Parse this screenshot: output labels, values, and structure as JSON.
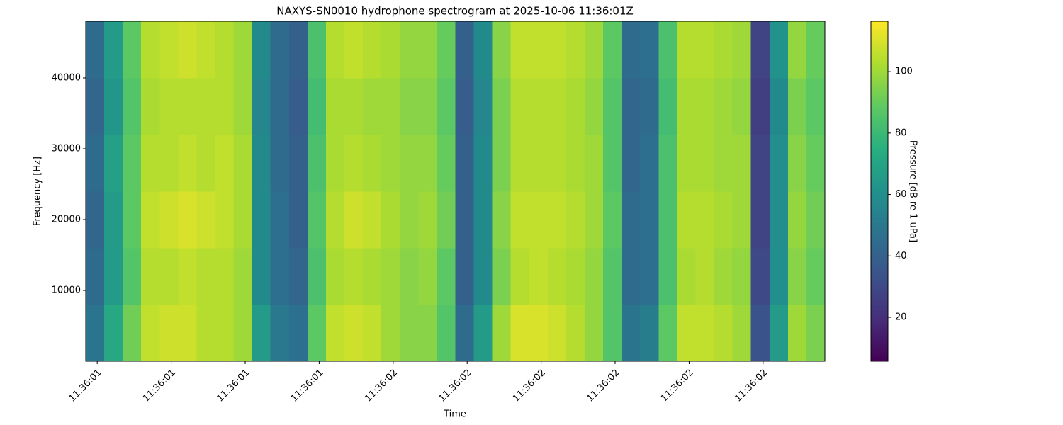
{
  "chart_data": {
    "type": "heatmap",
    "title": "NAXYS-SN0010 hydrophone spectrogram at 2025-10-06 11:36:01Z",
    "xlabel": "Time",
    "ylabel": "Frequency [Hz]",
    "colorbar_label": "Pressure [dB re 1 uPa]",
    "colormap": "viridis",
    "x": [
      -0.03,
      0.22,
      0.469,
      0.719,
      0.969,
      1.219,
      1.468,
      1.718,
      1.968,
      2.218,
      2.467,
      2.717,
      2.967,
      3.217,
      3.466,
      3.716,
      3.966,
      4.216,
      4.465,
      4.715,
      4.965,
      5.215,
      5.464,
      5.714,
      5.964,
      6.214,
      6.463,
      6.713,
      6.963,
      7.213,
      7.462,
      7.712,
      7.962,
      8.212,
      8.461,
      8.711,
      8.961,
      9.211,
      9.46,
      9.71
    ],
    "y": [
      4000,
      12000,
      20000,
      28000,
      36000,
      44000
    ],
    "z": [
      [
        48,
        72,
        92,
        106,
        108,
        108,
        104,
        104,
        100,
        66,
        50,
        46,
        88,
        106,
        108,
        106,
        100,
        96,
        96,
        86,
        44,
        66,
        100,
        110,
        110,
        108,
        104,
        98,
        86,
        48,
        52,
        88,
        106,
        106,
        104,
        100,
        34,
        66,
        100,
        94
      ],
      [
        44,
        66,
        86,
        104,
        104,
        106,
        104,
        104,
        100,
        58,
        46,
        42,
        84,
        102,
        104,
        102,
        100,
        96,
        98,
        88,
        40,
        58,
        94,
        104,
        106,
        104,
        102,
        98,
        86,
        44,
        46,
        84,
        102,
        104,
        100,
        98,
        30,
        60,
        96,
        90
      ],
      [
        42,
        66,
        88,
        106,
        108,
        110,
        108,
        106,
        102,
        58,
        46,
        40,
        86,
        104,
        108,
        106,
        102,
        98,
        100,
        92,
        40,
        58,
        96,
        106,
        106,
        106,
        104,
        100,
        88,
        44,
        46,
        84,
        104,
        104,
        102,
        100,
        28,
        60,
        98,
        92
      ],
      [
        44,
        68,
        88,
        104,
        104,
        106,
        104,
        106,
        102,
        58,
        44,
        40,
        84,
        102,
        104,
        102,
        100,
        98,
        98,
        90,
        40,
        58,
        94,
        104,
        104,
        104,
        102,
        100,
        86,
        42,
        46,
        84,
        102,
        102,
        100,
        100,
        28,
        60,
        96,
        90
      ],
      [
        42,
        64,
        86,
        102,
        104,
        104,
        104,
        104,
        100,
        56,
        44,
        38,
        82,
        102,
        102,
        100,
        100,
        96,
        96,
        88,
        38,
        56,
        94,
        104,
        104,
        104,
        102,
        98,
        86,
        42,
        44,
        82,
        102,
        102,
        100,
        98,
        26,
        58,
        94,
        88
      ],
      [
        44,
        66,
        88,
        104,
        106,
        108,
        106,
        104,
        100,
        58,
        44,
        40,
        84,
        104,
        106,
        104,
        102,
        98,
        98,
        90,
        40,
        58,
        96,
        106,
        106,
        106,
        104,
        100,
        88,
        44,
        46,
        84,
        104,
        104,
        102,
        100,
        28,
        62,
        98,
        90
      ]
    ],
    "xlim": [
      -0.155,
      9.835
    ],
    "xticks": [
      {
        "value": 0,
        "label": "11:36:01"
      },
      {
        "value": 1,
        "label": "11:36:01"
      },
      {
        "value": 2,
        "label": "11:36:01"
      },
      {
        "value": 3,
        "label": "11:36:01"
      },
      {
        "value": 4,
        "label": "11:36:02"
      },
      {
        "value": 5,
        "label": "11:36:02"
      },
      {
        "value": 6,
        "label": "11:36:02"
      },
      {
        "value": 7,
        "label": "11:36:02"
      },
      {
        "value": 8,
        "label": "11:36:02"
      },
      {
        "value": 9,
        "label": "11:36:02"
      }
    ],
    "ylim": [
      0,
      48000
    ],
    "yticks": [
      10000,
      20000,
      30000,
      40000
    ],
    "clim": [
      5.7,
      116.4
    ],
    "cticks": [
      20,
      40,
      60,
      80,
      100
    ]
  }
}
